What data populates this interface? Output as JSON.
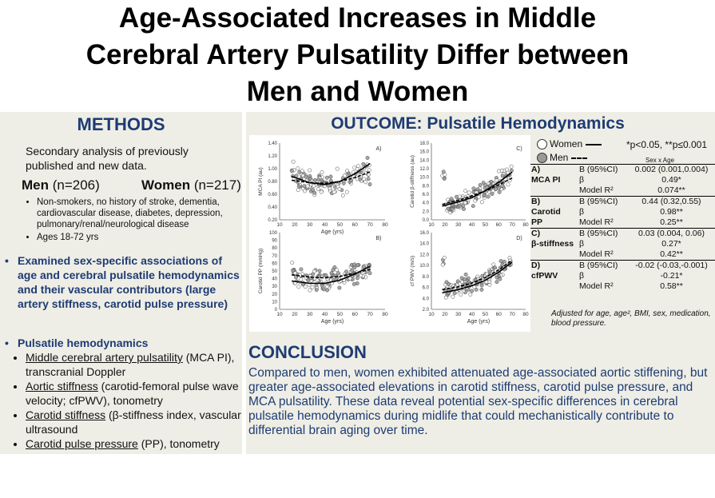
{
  "title": {
    "line1": "Age-Associated Increases in Middle",
    "line2": "Cerebral Artery Pulsatility Differ between",
    "line3": "Men and Women"
  },
  "methods": {
    "heading": "METHODS",
    "intro": "Secondary analysis of previously published and new data.",
    "men_label": "Men",
    "men_n": "(n=206)",
    "women_label": "Women",
    "women_n": "(n=217)",
    "criteria": [
      "Non-smokers, no history of stroke, dementia, cardiovascular disease, diabetes, depression, pulmonary/renal/neurological disease",
      "Ages 18-72 yrs"
    ],
    "bullet1": "Examined sex-specific associations of age and cerebral pulsatile hemodynamics and their vascular contributors (large artery stiffness, carotid pulse pressure)",
    "bullet2": "Pulsatile hemodynamics",
    "hemo_items": [
      {
        "term": "Middle cerebral artery pulsatility",
        "rest": " (MCA PI), transcranial Doppler"
      },
      {
        "term": "Aortic stiffness",
        "rest": " (carotid-femoral pulse wave velocity; cfPWV), tonometry"
      },
      {
        "term": "Carotid stiffness",
        "rest": " (β-stiffness index, vascular ultrasound"
      },
      {
        "term": "Carotid pulse pressure",
        "rest": " (PP), tonometry"
      }
    ],
    "bullet_glyph": "•"
  },
  "outcome": {
    "heading": "OUTCOME: Pulsatile Hemodynamics"
  },
  "legend": {
    "women": "Women",
    "men": "Men",
    "significance": "*p<0.05, **p≤0.001",
    "sex_x_age": "Sex x Age"
  },
  "stats": [
    {
      "letter": "A)",
      "name": "MCA PI",
      "rows": [
        {
          "term": "B (95%CI)",
          "value": "0.002 (0.001,0.004)"
        },
        {
          "term": "β",
          "value": "0.49*"
        },
        {
          "term": "Model R²",
          "value": "0.074**"
        }
      ]
    },
    {
      "letter": "B)",
      "name": "Carotid PP",
      "name1": "Carotid",
      "name2": "PP",
      "rows": [
        {
          "term": "B (95%CI)",
          "value": "0.44 (0.32,0.55)"
        },
        {
          "term": "β",
          "value": "0.98**"
        },
        {
          "term": "Model R²",
          "value": "0.25**"
        }
      ]
    },
    {
      "letter": "C)",
      "name": "β-stiffness",
      "rows": [
        {
          "term": "B (95%CI)",
          "value": "0.03 (0.004, 0.06)"
        },
        {
          "term": "β",
          "value": "0.27*"
        },
        {
          "term": "Model R²",
          "value": "0.42**"
        }
      ]
    },
    {
      "letter": "D)",
      "name": "cfPWV",
      "rows": [
        {
          "term": "B (95%CI)",
          "value": "-0.02 (-0.03,-0.001)"
        },
        {
          "term": "β",
          "value": "-0.21*"
        },
        {
          "term": "Model R²",
          "value": "0.58**"
        }
      ]
    }
  ],
  "adjusted_note": "Adjusted for age, age², BMI, sex, medication, blood pressure.",
  "conclusion": {
    "heading": "CONCLUSION",
    "body": "Compared to men, women exhibited attenuated age-associated aortic stiffening, but greater age-associated elevations in carotid stiffness, carotid pulse pressure, and MCA pulsatility. These data reveal potential sex-specific differences in cerebral pulsatile hemodynamics during midlife that could mechanistically contribute to differential brain aging over time."
  },
  "colors": {
    "heading_blue": "#1f3b73",
    "panel_bg": "#eeeee6",
    "women_marker": "#ffffff",
    "men_marker": "#9a9a9a"
  },
  "chart_data": [
    {
      "type": "scatter",
      "panel": "A)",
      "xlabel": "Age (yrs)",
      "ylabel": "MCA PI (au)",
      "xlim": [
        10,
        80
      ],
      "ylim": [
        0.2,
        1.4
      ],
      "xticks": [
        "10",
        "20",
        "30",
        "40",
        "50",
        "60",
        "70",
        "80"
      ],
      "yticks": [
        "0.20",
        "0.40",
        "0.60",
        "0.80",
        "1.00",
        "1.20",
        "1.40"
      ],
      "series": [
        {
          "name": "Women",
          "fit": [
            [
              18,
              0.88
            ],
            [
              30,
              0.78
            ],
            [
              40,
              0.75
            ],
            [
              50,
              0.8
            ],
            [
              60,
              0.92
            ],
            [
              70,
              1.08
            ]
          ]
        },
        {
          "name": "Men",
          "fit": [
            [
              18,
              0.82
            ],
            [
              30,
              0.78
            ],
            [
              40,
              0.77
            ],
            [
              50,
              0.8
            ],
            [
              60,
              0.86
            ],
            [
              70,
              0.95
            ]
          ]
        }
      ],
      "scatter_center": [
        [
          20,
          0.85
        ],
        [
          30,
          0.8
        ],
        [
          40,
          0.76
        ],
        [
          50,
          0.8
        ],
        [
          60,
          0.88
        ],
        [
          68,
          0.98
        ]
      ],
      "scatter_spread": 0.14
    },
    {
      "type": "scatter",
      "panel": "C)",
      "xlabel": "",
      "ylabel": "Carotid β-stiffness (au)",
      "xlim": [
        10,
        80
      ],
      "ylim": [
        0,
        18
      ],
      "xticks": [
        "10",
        "20",
        "30",
        "40",
        "50",
        "60",
        "70",
        "80"
      ],
      "yticks": [
        "0.0",
        "2.0",
        "4.0",
        "6.0",
        "8.0",
        "10.0",
        "12.0",
        "14.0",
        "16.0",
        "18.0"
      ],
      "series": [
        {
          "name": "Women",
          "fit": [
            [
              18,
              3.2
            ],
            [
              30,
              4.2
            ],
            [
              40,
              5.2
            ],
            [
              50,
              6.8
            ],
            [
              60,
              8.8
            ],
            [
              70,
              11.2
            ]
          ]
        },
        {
          "name": "Men",
          "fit": [
            [
              18,
              3.6
            ],
            [
              30,
              4.6
            ],
            [
              40,
              5.6
            ],
            [
              50,
              6.8
            ],
            [
              60,
              8.2
            ],
            [
              70,
              9.8
            ]
          ]
        }
      ],
      "scatter_center": [
        [
          20,
          3.5
        ],
        [
          30,
          4.5
        ],
        [
          40,
          5.5
        ],
        [
          50,
          7.0
        ],
        [
          60,
          8.8
        ],
        [
          68,
          10.5
        ]
      ],
      "scatter_spread": 1.8
    },
    {
      "type": "scatter",
      "panel": "B)",
      "xlabel": "Age (yrs)",
      "ylabel": "Carotid PP (mmHg)",
      "xlim": [
        10,
        80
      ],
      "ylim": [
        0,
        100
      ],
      "xticks": [
        "10",
        "20",
        "30",
        "40",
        "50",
        "60",
        "70",
        "80"
      ],
      "yticks": [
        "0",
        "10",
        "20",
        "30",
        "40",
        "50",
        "60",
        "70",
        "80",
        "90",
        "100"
      ],
      "series": [
        {
          "name": "Women",
          "fit": [
            [
              18,
              37
            ],
            [
              30,
              34
            ],
            [
              40,
              34
            ],
            [
              50,
              38
            ],
            [
              60,
              46
            ],
            [
              70,
              56
            ]
          ]
        },
        {
          "name": "Men",
          "fit": [
            [
              18,
              45
            ],
            [
              30,
              42
            ],
            [
              40,
              41
            ],
            [
              50,
              43
            ],
            [
              60,
              47
            ],
            [
              70,
              52
            ]
          ]
        }
      ],
      "scatter_center": [
        [
          20,
          40
        ],
        [
          30,
          38
        ],
        [
          40,
          38
        ],
        [
          50,
          41
        ],
        [
          60,
          47
        ],
        [
          68,
          53
        ]
      ],
      "scatter_spread": 10
    },
    {
      "type": "scatter",
      "panel": "D)",
      "xlabel": "Age (yrs)",
      "ylabel": "cf PWV (m/s)",
      "xlim": [
        10,
        80
      ],
      "ylim": [
        2,
        16
      ],
      "xticks": [
        "10",
        "20",
        "30",
        "40",
        "50",
        "60",
        "70",
        "80"
      ],
      "yticks": [
        "2.0",
        "4.0",
        "6.0",
        "8.0",
        "10.0",
        "12.0",
        "14.0",
        "16.0"
      ],
      "series": [
        {
          "name": "Women",
          "fit": [
            [
              18,
              5.0
            ],
            [
              30,
              5.6
            ],
            [
              40,
              6.3
            ],
            [
              50,
              7.3
            ],
            [
              60,
              8.8
            ],
            [
              70,
              10.6
            ]
          ]
        },
        {
          "name": "Men",
          "fit": [
            [
              18,
              5.6
            ],
            [
              30,
              6.1
            ],
            [
              40,
              6.8
            ],
            [
              50,
              7.8
            ],
            [
              60,
              9.2
            ],
            [
              70,
              11.0
            ]
          ]
        }
      ],
      "scatter_center": [
        [
          20,
          5.4
        ],
        [
          30,
          5.9
        ],
        [
          40,
          6.6
        ],
        [
          50,
          7.6
        ],
        [
          60,
          9.0
        ],
        [
          68,
          10.4
        ]
      ],
      "scatter_spread": 1.2
    }
  ]
}
